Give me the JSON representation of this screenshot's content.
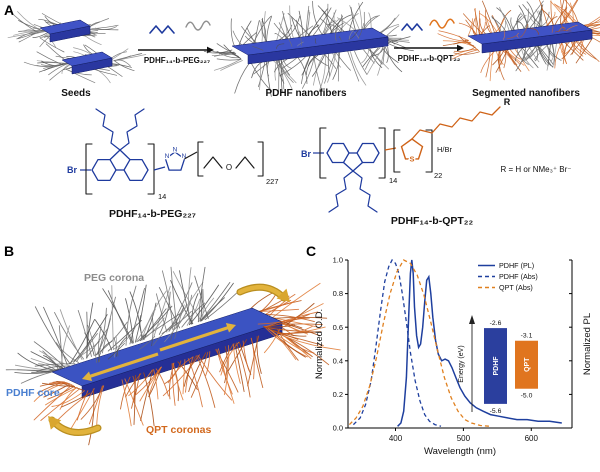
{
  "figure": {
    "panel_a": "A",
    "panel_b": "B",
    "panel_c": "C"
  },
  "panelA": {
    "stage1_label": "Seeds",
    "stage2_label": "PDHF nanofibers",
    "stage3_label": "Segmented nanofibers",
    "arrow1_reagent": "PDHF₁₄-b-PEG₂₂₇",
    "arrow2_reagent": "PDHF₁₄-b-QPT₂₂",
    "structures": {
      "left": {
        "br": "Br",
        "n1": "N",
        "n2": "N",
        "n3": "N",
        "o": "O",
        "repeat_fluorene": "14",
        "repeat_peg": "227",
        "label": "PDHF₁₄-b-PEG₂₂₇"
      },
      "right": {
        "br": "Br",
        "s": "S",
        "repeat_fluorene": "14",
        "repeat_qpt": "22",
        "end_group": "H/Br",
        "r_label": "R",
        "r_definition": "R = H or NMe₃⁺ Br⁻",
        "label": "PDHF₁₄-b-QPT₂₂"
      }
    }
  },
  "panelB": {
    "peg_label": "PEG corona",
    "pdhf_label": "PDHF core",
    "qpt_label": "QPT coronas",
    "colors": {
      "peg": "#8c8c8c",
      "pdhf": "#4a7fd0",
      "qpt": "#d2691e",
      "arrow": "#d9a62e",
      "fiber_top": "#3b53c2",
      "fiber_front": "#252f96"
    }
  },
  "chart_data": {
    "type": "line",
    "xlabel": "Wavelength (nm)",
    "ylabel_left": "Normalized O.D.",
    "ylabel_right": "Normalized PL",
    "xlim": [
      330,
      660
    ],
    "ylim": [
      0,
      1
    ],
    "xticks": [
      400,
      500,
      600
    ],
    "yticks": [
      0,
      0.2,
      0.4,
      0.6,
      0.8,
      1
    ],
    "grid": false,
    "legend_position": "top-right",
    "series": [
      {
        "name": "PDHF (PL)",
        "color": "#1e3f9e",
        "style": "solid",
        "x": [
          403,
          408,
          412,
          416,
          419,
          422,
          424,
          426,
          428,
          431,
          434,
          437,
          440,
          443,
          446,
          449,
          452,
          455,
          459,
          463,
          468,
          473,
          478,
          483,
          489,
          495,
          502,
          510,
          519,
          529,
          540,
          552,
          565,
          579,
          594,
          610,
          627,
          645
        ],
        "y": [
          0.01,
          0.03,
          0.1,
          0.3,
          0.62,
          0.92,
          1.0,
          0.92,
          0.72,
          0.55,
          0.48,
          0.5,
          0.6,
          0.75,
          0.88,
          0.9,
          0.8,
          0.66,
          0.52,
          0.44,
          0.4,
          0.41,
          0.4,
          0.36,
          0.3,
          0.24,
          0.19,
          0.15,
          0.12,
          0.1,
          0.08,
          0.07,
          0.06,
          0.05,
          0.05,
          0.04,
          0.04,
          0.03
        ]
      },
      {
        "name": "PDHF (Abs)",
        "color": "#1e3f9e",
        "style": "dashed",
        "x": [
          338,
          348,
          356,
          364,
          371,
          378,
          384,
          390,
          395,
          400,
          405,
          410,
          416,
          422,
          429,
          436,
          443,
          450,
          458,
          467
        ],
        "y": [
          0.02,
          0.06,
          0.14,
          0.28,
          0.48,
          0.7,
          0.87,
          0.96,
          1.0,
          0.98,
          0.92,
          0.8,
          0.63,
          0.45,
          0.28,
          0.16,
          0.08,
          0.04,
          0.02,
          0.01
        ]
      },
      {
        "name": "QPT (Abs)",
        "color": "#e0801f",
        "style": "dashed",
        "x": [
          332,
          342,
          352,
          362,
          372,
          382,
          392,
          402,
          412,
          422,
          432,
          442,
          452,
          462,
          472,
          482,
          492,
          502,
          512,
          525,
          540
        ],
        "y": [
          0.02,
          0.06,
          0.13,
          0.25,
          0.42,
          0.62,
          0.8,
          0.93,
          1.0,
          0.98,
          0.91,
          0.79,
          0.63,
          0.46,
          0.3,
          0.18,
          0.1,
          0.05,
          0.03,
          0.015,
          0.01
        ]
      }
    ],
    "inset": {
      "ylabel": "Energy (eV)",
      "bars": [
        {
          "name": "PDHF",
          "color": "#2b3f9e",
          "lumo": -2.6,
          "homo": -5.6
        },
        {
          "name": "QPT",
          "color": "#e0751f",
          "lumo": -3.1,
          "homo": -5.0
        }
      ]
    }
  }
}
